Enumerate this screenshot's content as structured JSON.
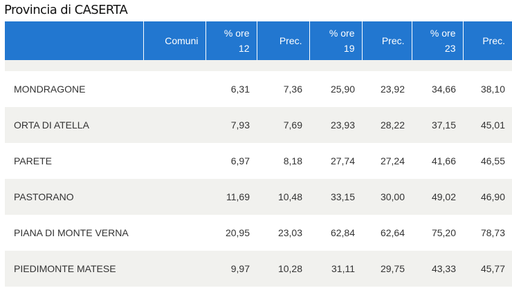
{
  "title": "Provincia di CASERTA",
  "headers": [
    "",
    "Comuni",
    "% ore 12",
    "Prec.",
    "% ore 19",
    "Prec.",
    "% ore 23",
    "Prec."
  ],
  "rows": [
    [
      "MONDRAGONE",
      "",
      "6,31",
      "7,36",
      "25,90",
      "23,92",
      "34,66",
      "38,10"
    ],
    [
      "ORTA DI ATELLA",
      "",
      "7,93",
      "7,69",
      "23,93",
      "28,22",
      "37,15",
      "45,01"
    ],
    [
      "PARETE",
      "",
      "6,97",
      "8,18",
      "27,74",
      "27,24",
      "41,66",
      "46,55"
    ],
    [
      "PASTORANO",
      "",
      "11,69",
      "10,48",
      "33,15",
      "30,00",
      "49,02",
      "46,90"
    ],
    [
      "PIANA DI MONTE VERNA",
      "",
      "20,95",
      "23,03",
      "62,84",
      "62,64",
      "75,20",
      "78,73"
    ],
    [
      "PIEDIMONTE MATESE",
      "",
      "9,97",
      "10,28",
      "31,11",
      "29,75",
      "43,33",
      "45,77"
    ]
  ],
  "colors": {
    "header_bg": "#2277d0",
    "stripe": "#f1f1ee"
  }
}
